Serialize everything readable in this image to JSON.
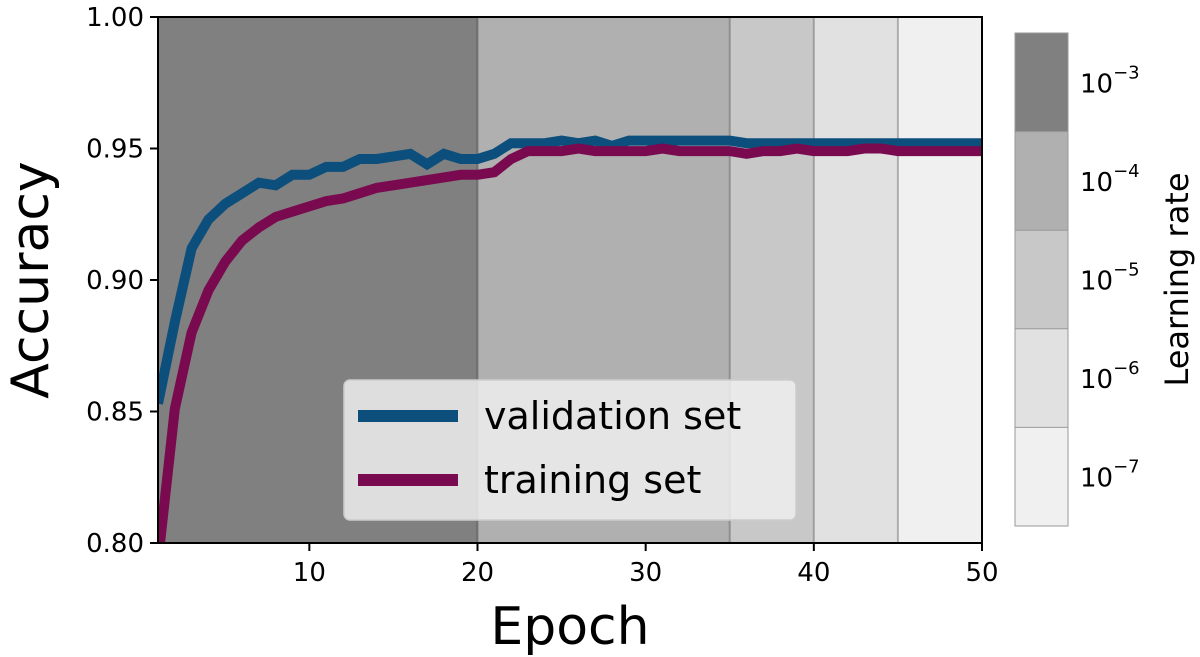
{
  "chart_data": {
    "type": "line",
    "xlabel": "Epoch",
    "ylabel": "Accuracy",
    "xlim": [
      1,
      50
    ],
    "ylim": [
      0.8,
      1.0
    ],
    "x_ticks": [
      10,
      20,
      30,
      40,
      50
    ],
    "x_tick_labels": [
      "10",
      "20",
      "30",
      "40",
      "50"
    ],
    "y_ticks": [
      0.8,
      0.85,
      0.9,
      0.95,
      1.0
    ],
    "y_tick_labels": [
      "0.80",
      "0.85",
      "0.90",
      "0.95",
      "1.00"
    ],
    "grid": false,
    "legend_position": "bottom-center",
    "x": [
      1,
      2,
      3,
      4,
      5,
      6,
      7,
      8,
      9,
      10,
      11,
      12,
      13,
      14,
      15,
      16,
      17,
      18,
      19,
      20,
      21,
      22,
      23,
      24,
      25,
      26,
      27,
      28,
      29,
      30,
      31,
      32,
      33,
      34,
      35,
      36,
      37,
      38,
      39,
      40,
      41,
      42,
      43,
      44,
      45,
      46,
      47,
      48,
      49,
      50
    ],
    "series": [
      {
        "name": "validation set",
        "color": "#0d4f7c",
        "values": [
          0.853,
          0.884,
          0.912,
          0.923,
          0.929,
          0.933,
          0.937,
          0.936,
          0.94,
          0.94,
          0.943,
          0.943,
          0.946,
          0.946,
          0.947,
          0.948,
          0.944,
          0.948,
          0.946,
          0.946,
          0.948,
          0.952,
          0.952,
          0.952,
          0.953,
          0.952,
          0.953,
          0.951,
          0.953,
          0.953,
          0.953,
          0.953,
          0.953,
          0.953,
          0.953,
          0.952,
          0.952,
          0.952,
          0.952,
          0.952,
          0.952,
          0.952,
          0.952,
          0.952,
          0.952,
          0.952,
          0.952,
          0.952,
          0.952,
          0.952
        ]
      },
      {
        "name": "training set",
        "color": "#7a0a4f",
        "values": [
          0.793,
          0.851,
          0.88,
          0.896,
          0.907,
          0.915,
          0.92,
          0.924,
          0.926,
          0.928,
          0.93,
          0.931,
          0.933,
          0.935,
          0.936,
          0.937,
          0.938,
          0.939,
          0.94,
          0.94,
          0.941,
          0.946,
          0.949,
          0.949,
          0.949,
          0.95,
          0.949,
          0.949,
          0.949,
          0.949,
          0.95,
          0.949,
          0.949,
          0.949,
          0.949,
          0.948,
          0.949,
          0.949,
          0.95,
          0.949,
          0.949,
          0.949,
          0.95,
          0.95,
          0.949,
          0.949,
          0.949,
          0.949,
          0.949,
          0.949
        ]
      }
    ],
    "background_bands": [
      {
        "from": 1,
        "to": 20,
        "color": "#808080"
      },
      {
        "from": 20,
        "to": 35,
        "color": "#b0b0b0"
      },
      {
        "from": 35,
        "to": 40,
        "color": "#c8c8c8"
      },
      {
        "from": 40,
        "to": 45,
        "color": "#e1e1e1"
      },
      {
        "from": 45,
        "to": 50,
        "color": "#f0f0f0"
      }
    ],
    "colorbar": {
      "label": "Learning rate",
      "levels": [
        {
          "base": "10",
          "exp": "−3",
          "color": "#808080"
        },
        {
          "base": "10",
          "exp": "−4",
          "color": "#b0b0b0"
        },
        {
          "base": "10",
          "exp": "−5",
          "color": "#c8c8c8"
        },
        {
          "base": "10",
          "exp": "−6",
          "color": "#e1e1e1"
        },
        {
          "base": "10",
          "exp": "−7",
          "color": "#f0f0f0"
        }
      ]
    }
  }
}
